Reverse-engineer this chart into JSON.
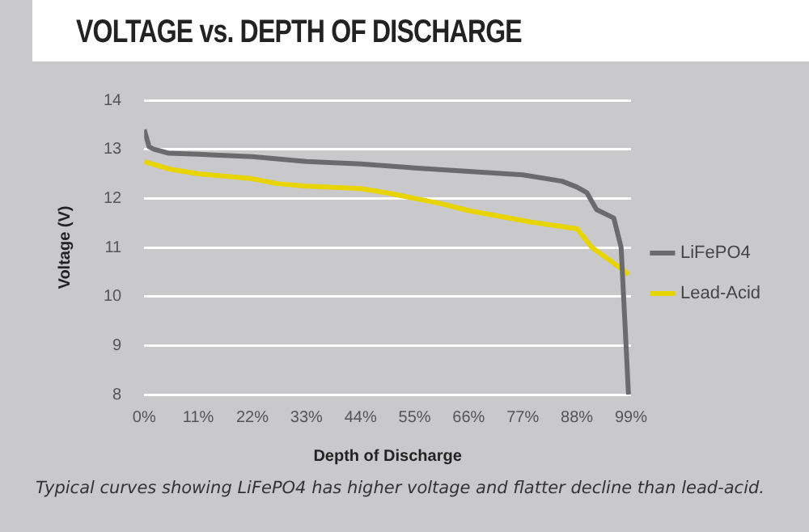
{
  "chart_data": {
    "type": "line",
    "title": "VOLTAGE vs. DEPTH OF DISCHARGE",
    "xlabel": "Depth of Discharge",
    "ylabel": "Voltage (V)",
    "annotations": [
      "Typical curves showing LiFePO4 has higher voltage and flatter decline than lead-acid."
    ],
    "xlim": [
      0,
      99
    ],
    "xticks": [
      {
        "value": 0,
        "label": "0%"
      },
      {
        "value": 11,
        "label": "11%"
      },
      {
        "value": 22,
        "label": "22%"
      },
      {
        "value": 33,
        "label": "33%"
      },
      {
        "value": 44,
        "label": "44%"
      },
      {
        "value": 55,
        "label": "55%"
      },
      {
        "value": 66,
        "label": "66%"
      },
      {
        "value": 77,
        "label": "77%"
      },
      {
        "value": 88,
        "label": "88%"
      },
      {
        "value": 99,
        "label": "99%"
      }
    ],
    "ylim": [
      8,
      14
    ],
    "yticks": [
      8,
      9,
      10,
      11,
      12,
      13,
      14
    ],
    "grid": "y",
    "legend": "right",
    "marker": "none",
    "line_style": "solid",
    "series": [
      {
        "name": "LiFePO4",
        "color": "#6b6b6d",
        "x": [
          0,
          1,
          2,
          5,
          11,
          22,
          33,
          44,
          55,
          66,
          77,
          85,
          88,
          90,
          92,
          95.5,
          97,
          98.5
        ],
        "values": [
          13.4,
          13.05,
          13.0,
          12.92,
          12.9,
          12.85,
          12.75,
          12.7,
          12.62,
          12.55,
          12.48,
          12.35,
          12.23,
          12.12,
          11.77,
          11.6,
          11.0,
          8.0
        ]
      },
      {
        "name": "Lead-Acid",
        "color": "#e8d400",
        "x": [
          0,
          5,
          11,
          22,
          27,
          33,
          44,
          50,
          55,
          60,
          66,
          78.5,
          88,
          91,
          94.5,
          98.5
        ],
        "values": [
          12.75,
          12.6,
          12.5,
          12.4,
          12.3,
          12.25,
          12.2,
          12.1,
          12.0,
          11.9,
          11.75,
          11.52,
          11.38,
          11.0,
          10.75,
          10.45
        ]
      }
    ]
  }
}
